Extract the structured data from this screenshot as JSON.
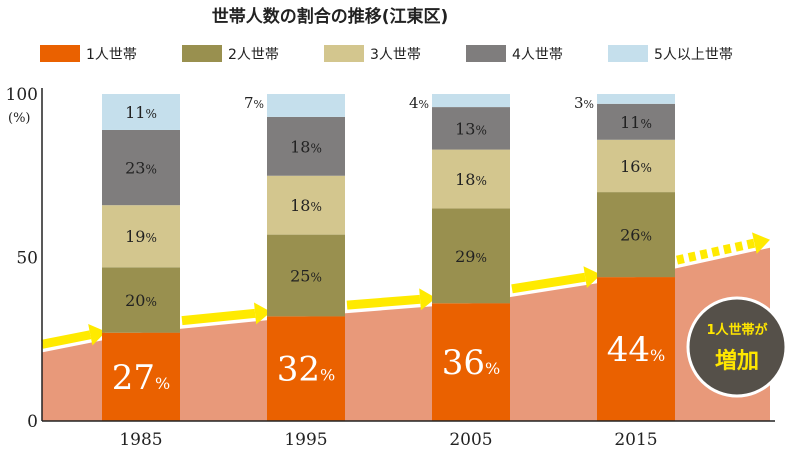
{
  "chart_data": {
    "type": "bar",
    "stacked": true,
    "title": "世帯人数の割合の推移(江東区)",
    "unit_label": "(%)",
    "ylim": [
      0,
      100
    ],
    "yticks": [
      0,
      50,
      100
    ],
    "categories": [
      "1985",
      "1995",
      "2005",
      "2015"
    ],
    "series": [
      {
        "name": "1人世帯",
        "color": "#ea6100",
        "values": [
          27,
          32,
          36,
          44
        ]
      },
      {
        "name": "2人世帯",
        "color": "#99904f",
        "values": [
          20,
          25,
          29,
          26
        ]
      },
      {
        "name": "3人世帯",
        "color": "#d3c68e",
        "values": [
          19,
          18,
          18,
          16
        ]
      },
      {
        "name": "4人世帯",
        "color": "#7f7d7d",
        "values": [
          23,
          18,
          13,
          11
        ]
      },
      {
        "name": "5人以上世帯",
        "color": "#c5dfec",
        "values": [
          11,
          7,
          4,
          3
        ]
      }
    ],
    "percent_suffix": "%",
    "annotation": {
      "line1": "1人世帯が",
      "line2": "増加"
    },
    "colors": {
      "trend_area": "#e8997a",
      "arrow": "#ffea00",
      "badge_bg": "#555049",
      "badge_text": "#ffe600"
    }
  }
}
